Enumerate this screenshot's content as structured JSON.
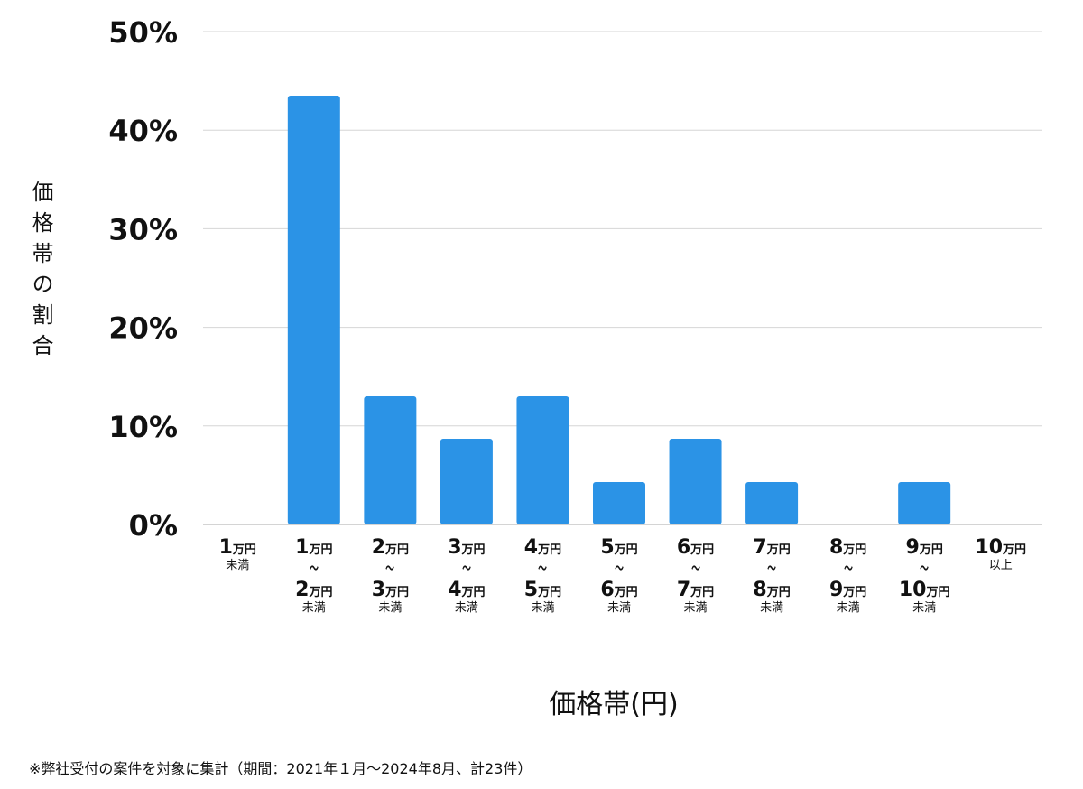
{
  "chart_data": {
    "type": "bar",
    "categories": [
      {
        "lines": [
          {
            "num": "1",
            "unit": "万円"
          }
        ],
        "note": "未満"
      },
      {
        "lines": [
          {
            "num": "1",
            "unit": "万円"
          },
          {
            "num": "2",
            "unit": "万円"
          }
        ],
        "sep": "〜",
        "note": "未満"
      },
      {
        "lines": [
          {
            "num": "2",
            "unit": "万円"
          },
          {
            "num": "3",
            "unit": "万円"
          }
        ],
        "sep": "〜",
        "note": "未満"
      },
      {
        "lines": [
          {
            "num": "3",
            "unit": "万円"
          },
          {
            "num": "4",
            "unit": "万円"
          }
        ],
        "sep": "〜",
        "note": "未満"
      },
      {
        "lines": [
          {
            "num": "4",
            "unit": "万円"
          },
          {
            "num": "5",
            "unit": "万円"
          }
        ],
        "sep": "〜",
        "note": "未満"
      },
      {
        "lines": [
          {
            "num": "5",
            "unit": "万円"
          },
          {
            "num": "6",
            "unit": "万円"
          }
        ],
        "sep": "〜",
        "note": "未満"
      },
      {
        "lines": [
          {
            "num": "6",
            "unit": "万円"
          },
          {
            "num": "7",
            "unit": "万円"
          }
        ],
        "sep": "〜",
        "note": "未満"
      },
      {
        "lines": [
          {
            "num": "7",
            "unit": "万円"
          },
          {
            "num": "8",
            "unit": "万円"
          }
        ],
        "sep": "〜",
        "note": "未満"
      },
      {
        "lines": [
          {
            "num": "8",
            "unit": "万円"
          },
          {
            "num": "9",
            "unit": "万円"
          }
        ],
        "sep": "〜",
        "note": "未満"
      },
      {
        "lines": [
          {
            "num": "9",
            "unit": "万円"
          },
          {
            "num": "10",
            "unit": "万円"
          }
        ],
        "sep": "〜",
        "note": "未満"
      },
      {
        "lines": [
          {
            "num": "10",
            "unit": "万円"
          }
        ],
        "note": "以上"
      }
    ],
    "values": [
      0,
      43.5,
      13.0,
      8.7,
      13.0,
      4.3,
      8.7,
      4.3,
      0,
      4.3,
      0
    ],
    "ylim": [
      0,
      50
    ],
    "yticks": [
      "0%",
      "10%",
      "20%",
      "30%",
      "40%",
      "50%"
    ],
    "ylabel": "価格帯の割合",
    "xlabel": "価格帯(円)",
    "grid": true,
    "bar_color": "#2b93e6"
  },
  "footnote": "※弊社受付の案件を対象に集計（期間：2021年１月〜2024年8月、計23件）"
}
